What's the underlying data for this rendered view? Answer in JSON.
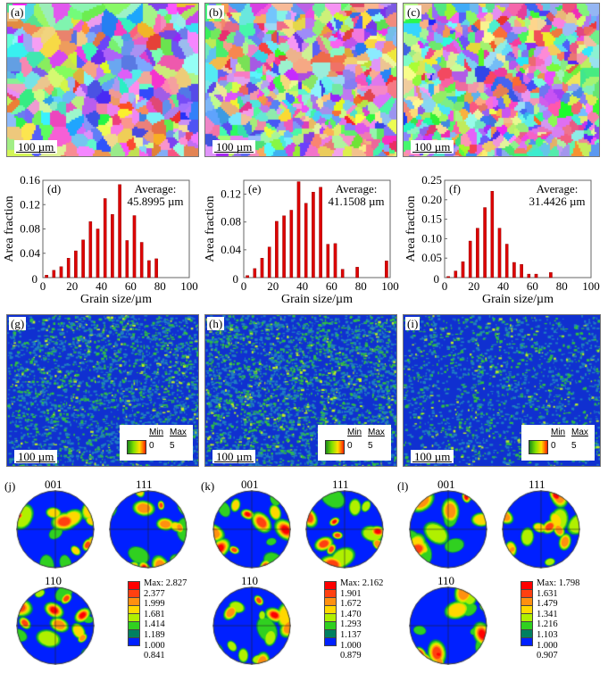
{
  "maps": [
    {
      "label": "(a)",
      "scale": "100 µm"
    },
    {
      "label": "(b)",
      "scale": "100 µm"
    },
    {
      "label": "(c)",
      "scale": "100 µm"
    }
  ],
  "kam": {
    "panels": [
      {
        "label": "(g)",
        "scale": "100 µm"
      },
      {
        "label": "(h)",
        "scale": "100 µm"
      },
      {
        "label": "(i)",
        "scale": "100 µm"
      }
    ],
    "legend": {
      "min_label": "Min",
      "max_label": "Max",
      "min": "0",
      "max": "5"
    }
  },
  "chart_data": [
    {
      "type": "bar",
      "panel": "(d)",
      "annotation_title": "Average:",
      "annotation_value": "45.8995 µm",
      "xlabel": "Grain size/µm",
      "ylabel": "Area fraction",
      "xlim": [
        0,
        100
      ],
      "ylim": [
        0,
        0.16
      ],
      "xticks": [
        "0",
        "20",
        "40",
        "60",
        "80",
        "100"
      ],
      "yticks": [
        "0.04",
        "0.08",
        "0.12",
        "0.16"
      ],
      "ytick_values": [
        0.04,
        0.08,
        0.12,
        0.16
      ],
      "x": [
        2.5,
        7.5,
        12.5,
        17.5,
        22.5,
        27.5,
        32.5,
        37.5,
        42.5,
        47.5,
        52.5,
        57.5,
        62.5,
        67.5,
        72.5,
        77.5
      ],
      "values": [
        0.004,
        0.012,
        0.018,
        0.032,
        0.044,
        0.062,
        0.092,
        0.08,
        0.13,
        0.104,
        0.153,
        0.061,
        0.102,
        0.058,
        0.028,
        0.031
      ],
      "color": "#dd0000",
      "grid": false
    },
    {
      "type": "bar",
      "panel": "(e)",
      "annotation_title": "Average:",
      "annotation_value": "41.1508 µm",
      "xlabel": "Grain size/µm",
      "ylabel": "Area fraction",
      "xlim": [
        0,
        100
      ],
      "ylim": [
        0,
        0.14
      ],
      "xticks": [
        "0",
        "20",
        "40",
        "60",
        "80",
        "100"
      ],
      "yticks": [
        "0.04",
        "0.08",
        "0.12"
      ],
      "ytick_values": [
        0.04,
        0.08,
        0.12
      ],
      "x": [
        2.5,
        7.5,
        12.5,
        17.5,
        22.5,
        27.5,
        32.5,
        37.5,
        42.5,
        47.5,
        52.5,
        57.5,
        62.5,
        67.5,
        77.5,
        97.5
      ],
      "values": [
        0.003,
        0.013,
        0.028,
        0.044,
        0.081,
        0.089,
        0.097,
        0.138,
        0.107,
        0.123,
        0.13,
        0.048,
        0.049,
        0.012,
        0.015,
        0.024
      ],
      "color": "#dd0000",
      "grid": false
    },
    {
      "type": "bar",
      "panel": "(f)",
      "annotation_title": "Average:",
      "annotation_value": "31.4426 µm",
      "xlabel": "Grain size/µm",
      "ylabel": "Area fraction",
      "xlim": [
        0,
        100
      ],
      "ylim": [
        0,
        0.25
      ],
      "xticks": [
        "0",
        "20",
        "40",
        "60",
        "80",
        "100"
      ],
      "yticks": [
        "0.05",
        "0.10",
        "0.15",
        "0.20",
        "0.25"
      ],
      "ytick_values": [
        0.05,
        0.1,
        0.15,
        0.2,
        0.25
      ],
      "x": [
        2.5,
        7.5,
        12.5,
        17.5,
        22.5,
        27.5,
        32.5,
        37.5,
        42.5,
        47.5,
        52.5,
        57.5,
        62.5,
        72.5
      ],
      "values": [
        0.003,
        0.017,
        0.041,
        0.094,
        0.127,
        0.18,
        0.222,
        0.127,
        0.086,
        0.039,
        0.034,
        0.009,
        0.009,
        0.013
      ],
      "color": "#dd0000",
      "grid": false
    }
  ],
  "pole_figures": [
    {
      "label": "(j)",
      "titles": [
        "001",
        "111",
        "110"
      ],
      "max": "Max: 2.827",
      "levels": [
        "2.377",
        "1.999",
        "1.681",
        "1.414",
        "1.189",
        "1.000",
        "0.841"
      ]
    },
    {
      "label": "(k)",
      "titles": [
        "001",
        "111",
        "110"
      ],
      "max": "Max: 2.162",
      "levels": [
        "1.901",
        "1.672",
        "1.470",
        "1.293",
        "1.137",
        "1.000",
        "0.879"
      ]
    },
    {
      "label": "(l)",
      "titles": [
        "001",
        "111",
        "110"
      ],
      "max": "Max: 1.798",
      "levels": [
        "1.631",
        "1.479",
        "1.341",
        "1.216",
        "1.103",
        "1.000",
        "0.907"
      ]
    }
  ],
  "colorbar": [
    "#ff0000",
    "#ff4010",
    "#ff9010",
    "#ffd800",
    "#b0f000",
    "#30d020",
    "#008060",
    "#0020ff"
  ]
}
